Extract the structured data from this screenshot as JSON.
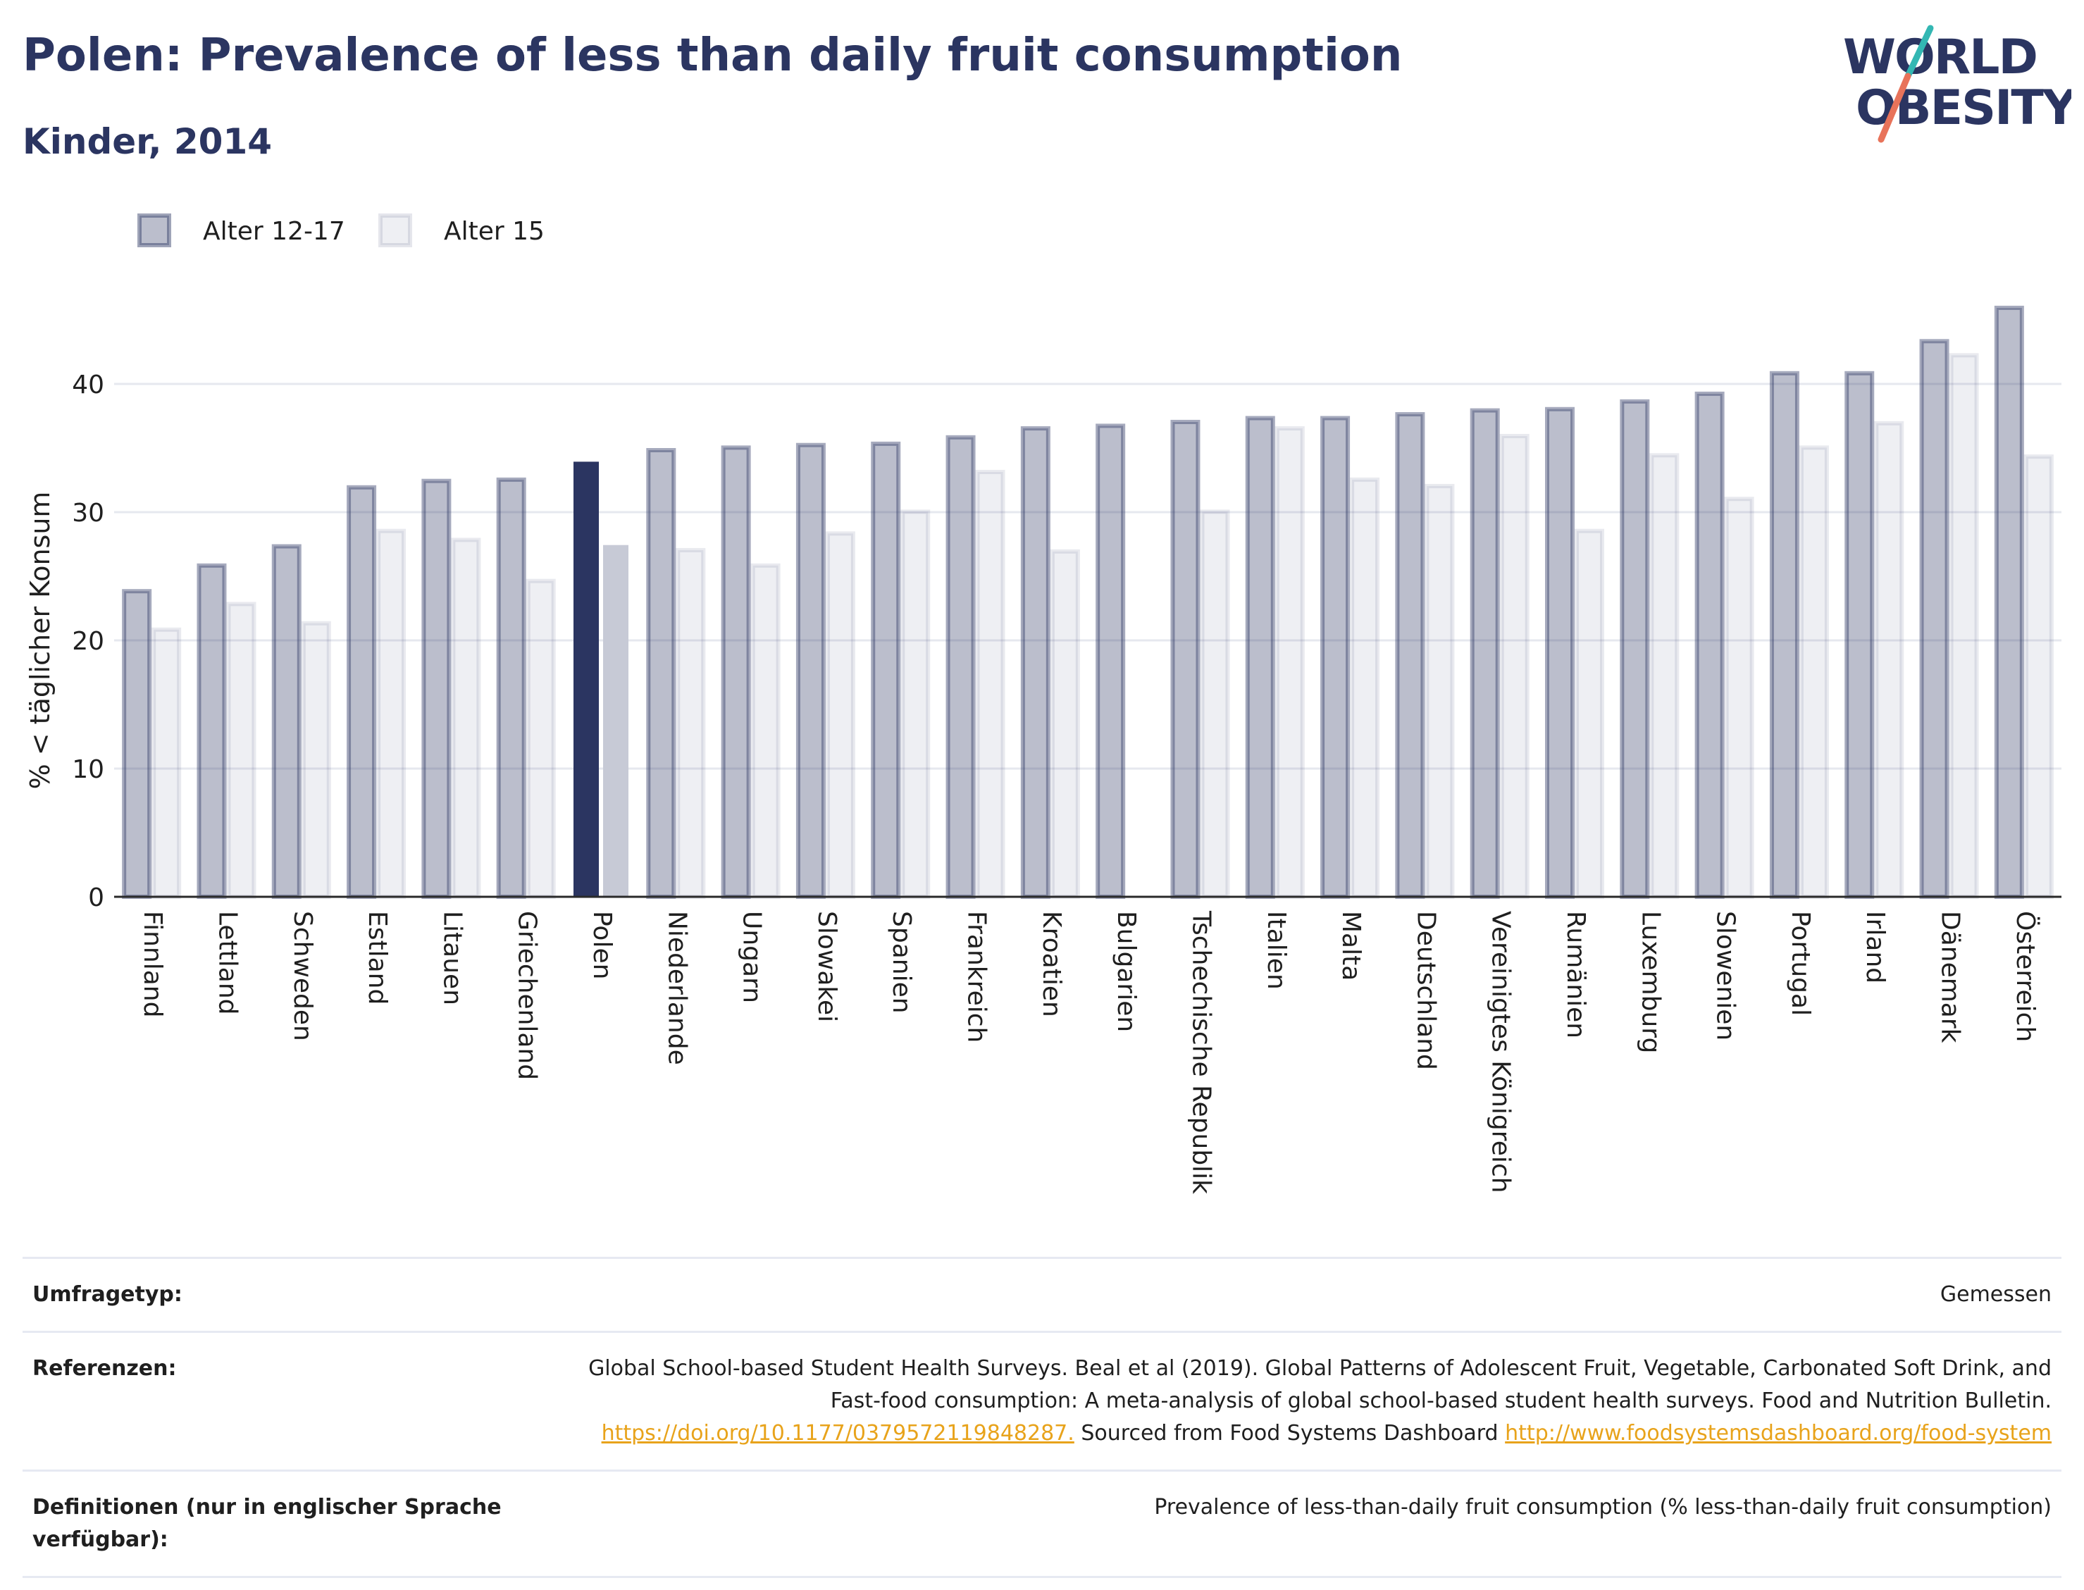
{
  "title": "Polen: Prevalence of less than daily fruit consumption",
  "subtitle": "Kinder, 2014",
  "logo": {
    "line1": "WORLD",
    "line2": "OBESITY",
    "colors": [
      "#2b3561",
      "#33b7b3",
      "#e8735a"
    ]
  },
  "colors": {
    "series1": "#2b3561",
    "series1_fill": "rgba(43,53,97,0.32)",
    "series2_fill": "rgba(43,53,97,0.08)",
    "highlight": "#2b3561",
    "highlight_second": "#c7cad6",
    "title": "#2b3561",
    "link": "#e8a31b"
  },
  "chart_data": {
    "type": "bar",
    "ylabel": "% < täglicher Konsum",
    "xlabel": "",
    "ylim": [
      0,
      50
    ],
    "yticks": [
      0,
      10,
      20,
      30,
      40
    ],
    "grid": true,
    "legend_position": "top-left",
    "highlight_category": "Polen",
    "categories": [
      "Finnland",
      "Lettland",
      "Schweden",
      "Estland",
      "Litauen",
      "Griechenland",
      "Polen",
      "Niederlande",
      "Ungarn",
      "Slowakei",
      "Spanien",
      "Frankreich",
      "Kroatien",
      "Bulgarien",
      "Tschechische Republik",
      "Italien",
      "Malta",
      "Deutschland",
      "Vereinigtes Königreich",
      "Rumänien",
      "Luxemburg",
      "Slowenien",
      "Portugal",
      "Irland",
      "Dänemark",
      "Österreich"
    ],
    "series": [
      {
        "name": "Alter 12-17",
        "values": [
          24.0,
          26.0,
          27.5,
          32.1,
          32.6,
          32.7,
          34.1,
          35.0,
          35.2,
          35.4,
          35.5,
          36.0,
          36.7,
          36.9,
          37.2,
          37.5,
          37.5,
          37.8,
          38.1,
          38.2,
          38.8,
          39.4,
          41.0,
          41.0,
          43.5,
          46.1
        ]
      },
      {
        "name": "Alter 15",
        "values": [
          21.0,
          23.0,
          21.5,
          28.7,
          28.0,
          24.8,
          27.6,
          27.2,
          26.0,
          28.5,
          30.2,
          33.3,
          27.1,
          null,
          30.2,
          36.7,
          32.7,
          32.2,
          36.1,
          28.7,
          34.6,
          31.2,
          35.2,
          37.1,
          42.4,
          34.5
        ]
      }
    ]
  },
  "info": {
    "survey_type_label": "Umfragetyp:",
    "survey_type_value": "Gemessen",
    "references_label": "Referenzen:",
    "references_text": "Global School-based Student Health Surveys. Beal et al (2019). Global Patterns of Adolescent Fruit, Vegetable, Carbonated Soft Drink, and Fast-food consumption: A meta-analysis of global school-based student health surveys. Food and Nutrition Bulletin.",
    "references_link1": "https://doi.org/10.1177/0379572119848287.",
    "references_mid": "Sourced from Food Systems Dashboard",
    "references_link2": "http://www.foodsystemsdashboard.org/food-system",
    "definitions_label": "Definitionen (nur in englischer Sprache verfügbar):",
    "definitions_value": "Prevalence of less-than-daily fruit consumption (% less-than-daily fruit consumption)"
  }
}
